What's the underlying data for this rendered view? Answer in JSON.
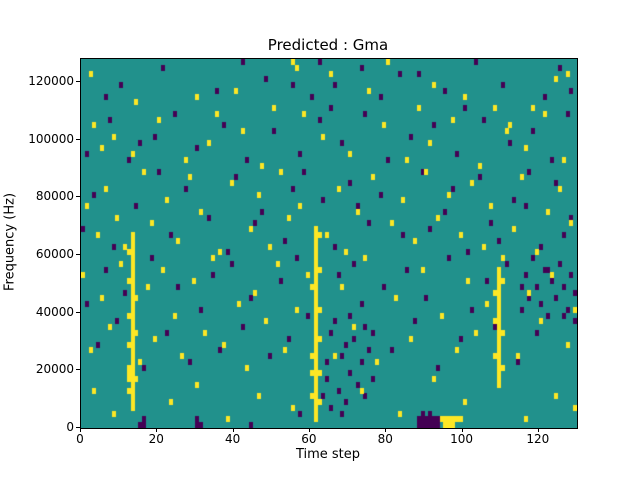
{
  "chart_data": {
    "type": "heatmap",
    "title": "Predicted : Gma",
    "xlabel": "Time step",
    "ylabel": "Frequency (Hz)",
    "xlim": [
      0,
      130
    ],
    "ylim": [
      0,
      128000
    ],
    "x_ticks": [
      0,
      20,
      40,
      60,
      80,
      100,
      120
    ],
    "y_ticks": [
      0,
      20000,
      40000,
      60000,
      80000,
      100000,
      120000
    ],
    "grid": false,
    "legend": "none",
    "n_time_steps": 130,
    "n_freq_bins": 64,
    "freq_bin_hz": 2000,
    "colors": {
      "background_mid": "#21918c",
      "high": "#fde725",
      "low": "#440154"
    },
    "yellow_cells": [
      [
        2,
        61
      ],
      [
        55,
        63
      ],
      [
        56,
        62
      ],
      [
        75,
        58
      ],
      [
        80,
        63
      ],
      [
        92,
        59
      ],
      [
        124,
        60
      ],
      [
        30,
        57
      ],
      [
        14,
        56
      ],
      [
        40,
        58
      ],
      [
        65,
        61
      ],
      [
        100,
        57
      ],
      [
        118,
        55
      ],
      [
        127,
        61
      ],
      [
        3,
        52
      ],
      [
        5,
        48
      ],
      [
        8,
        50
      ],
      [
        13,
        47
      ],
      [
        20,
        53
      ],
      [
        27,
        46
      ],
      [
        33,
        49
      ],
      [
        42,
        51
      ],
      [
        47,
        45
      ],
      [
        58,
        54
      ],
      [
        63,
        50
      ],
      [
        70,
        47
      ],
      [
        79,
        52
      ],
      [
        85,
        46
      ],
      [
        91,
        49
      ],
      [
        97,
        53
      ],
      [
        104,
        45
      ],
      [
        111,
        51
      ],
      [
        116,
        48
      ],
      [
        121,
        54
      ],
      [
        126,
        46
      ],
      [
        35,
        54
      ],
      [
        50,
        55
      ],
      [
        88,
        55
      ],
      [
        108,
        55
      ],
      [
        112,
        52
      ],
      [
        1,
        38
      ],
      [
        4,
        33
      ],
      [
        6,
        41
      ],
      [
        9,
        36
      ],
      [
        11,
        31
      ],
      [
        16,
        44
      ],
      [
        18,
        35
      ],
      [
        22,
        39
      ],
      [
        25,
        32
      ],
      [
        28,
        43
      ],
      [
        31,
        37
      ],
      [
        36,
        30
      ],
      [
        39,
        42
      ],
      [
        44,
        34
      ],
      [
        46,
        40
      ],
      [
        49,
        31
      ],
      [
        52,
        44
      ],
      [
        54,
        36
      ],
      [
        57,
        38
      ],
      [
        64,
        33
      ],
      [
        67,
        41
      ],
      [
        69,
        30
      ],
      [
        72,
        37
      ],
      [
        76,
        43
      ],
      [
        81,
        35
      ],
      [
        84,
        39
      ],
      [
        87,
        32
      ],
      [
        90,
        44
      ],
      [
        93,
        36
      ],
      [
        96,
        40
      ],
      [
        99,
        33
      ],
      [
        102,
        42
      ],
      [
        105,
        31
      ],
      [
        107,
        38
      ],
      [
        113,
        34
      ],
      [
        115,
        43
      ],
      [
        119,
        30
      ],
      [
        122,
        37
      ],
      [
        125,
        41
      ],
      [
        128,
        35
      ],
      [
        0,
        26
      ],
      [
        2,
        13
      ],
      [
        5,
        22
      ],
      [
        7,
        17
      ],
      [
        10,
        28
      ],
      [
        15,
        11
      ],
      [
        17,
        24
      ],
      [
        19,
        15
      ],
      [
        21,
        27
      ],
      [
        24,
        19
      ],
      [
        26,
        12
      ],
      [
        29,
        25
      ],
      [
        32,
        16
      ],
      [
        34,
        29
      ],
      [
        37,
        14
      ],
      [
        41,
        21
      ],
      [
        43,
        10
      ],
      [
        45,
        23
      ],
      [
        48,
        18
      ],
      [
        51,
        28
      ],
      [
        53,
        13
      ],
      [
        56,
        20
      ],
      [
        59,
        26
      ],
      [
        66,
        12
      ],
      [
        68,
        24
      ],
      [
        71,
        17
      ],
      [
        74,
        29
      ],
      [
        77,
        11
      ],
      [
        82,
        22
      ],
      [
        86,
        15
      ],
      [
        89,
        27
      ],
      [
        94,
        19
      ],
      [
        98,
        13
      ],
      [
        101,
        25
      ],
      [
        103,
        16
      ],
      [
        106,
        21
      ],
      [
        110,
        29
      ],
      [
        114,
        12
      ],
      [
        117,
        23
      ],
      [
        120,
        18
      ],
      [
        123,
        26
      ],
      [
        127,
        14
      ],
      [
        129,
        20
      ],
      [
        3,
        6
      ],
      [
        8,
        2
      ],
      [
        12,
        8
      ],
      [
        23,
        4
      ],
      [
        30,
        7
      ],
      [
        38,
        1
      ],
      [
        46,
        5
      ],
      [
        55,
        3
      ],
      [
        60,
        9
      ],
      [
        73,
        6
      ],
      [
        83,
        2
      ],
      [
        92,
        8
      ],
      [
        100,
        4
      ],
      [
        109,
        7
      ],
      [
        116,
        1
      ],
      [
        124,
        5
      ],
      [
        129,
        3
      ],
      [
        13,
        3
      ],
      [
        13,
        4
      ],
      [
        13,
        5
      ],
      [
        13,
        6
      ],
      [
        13,
        7
      ],
      [
        13,
        8
      ],
      [
        13,
        9
      ],
      [
        13,
        10
      ],
      [
        13,
        11
      ],
      [
        13,
        12
      ],
      [
        13,
        13
      ],
      [
        13,
        14
      ],
      [
        13,
        15
      ],
      [
        13,
        16
      ],
      [
        13,
        17
      ],
      [
        13,
        18
      ],
      [
        13,
        19
      ],
      [
        13,
        20
      ],
      [
        13,
        21
      ],
      [
        13,
        22
      ],
      [
        13,
        23
      ],
      [
        13,
        24
      ],
      [
        13,
        25
      ],
      [
        13,
        26
      ],
      [
        13,
        27
      ],
      [
        13,
        28
      ],
      [
        13,
        29
      ],
      [
        13,
        30
      ],
      [
        13,
        31
      ],
      [
        13,
        32
      ],
      [
        13,
        33
      ],
      [
        12,
        6
      ],
      [
        12,
        9
      ],
      [
        12,
        10
      ],
      [
        12,
        14
      ],
      [
        12,
        19
      ],
      [
        12,
        25
      ],
      [
        12,
        30
      ],
      [
        14,
        8
      ],
      [
        14,
        16
      ],
      [
        14,
        22
      ],
      [
        61,
        1
      ],
      [
        61,
        2
      ],
      [
        61,
        3
      ],
      [
        61,
        4
      ],
      [
        61,
        5
      ],
      [
        61,
        6
      ],
      [
        61,
        7
      ],
      [
        61,
        8
      ],
      [
        61,
        9
      ],
      [
        61,
        10
      ],
      [
        61,
        11
      ],
      [
        61,
        12
      ],
      [
        61,
        13
      ],
      [
        61,
        14
      ],
      [
        61,
        15
      ],
      [
        61,
        16
      ],
      [
        61,
        17
      ],
      [
        61,
        18
      ],
      [
        61,
        19
      ],
      [
        61,
        20
      ],
      [
        61,
        21
      ],
      [
        61,
        22
      ],
      [
        61,
        23
      ],
      [
        61,
        24
      ],
      [
        61,
        25
      ],
      [
        61,
        26
      ],
      [
        61,
        27
      ],
      [
        61,
        28
      ],
      [
        61,
        29
      ],
      [
        61,
        30
      ],
      [
        61,
        31
      ],
      [
        61,
        32
      ],
      [
        61,
        33
      ],
      [
        61,
        34
      ],
      [
        62,
        4
      ],
      [
        62,
        9
      ],
      [
        62,
        15
      ],
      [
        62,
        20
      ],
      [
        62,
        27
      ],
      [
        62,
        33
      ],
      [
        60,
        5
      ],
      [
        60,
        12
      ],
      [
        60,
        24
      ],
      [
        109,
        8
      ],
      [
        109,
        9
      ],
      [
        109,
        10
      ],
      [
        109,
        11
      ],
      [
        109,
        12
      ],
      [
        109,
        13
      ],
      [
        109,
        14
      ],
      [
        109,
        15
      ],
      [
        109,
        16
      ],
      [
        109,
        17
      ],
      [
        109,
        18
      ],
      [
        109,
        19
      ],
      [
        109,
        20
      ],
      [
        109,
        21
      ],
      [
        109,
        22
      ],
      [
        109,
        23
      ],
      [
        109,
        24
      ],
      [
        109,
        25
      ],
      [
        109,
        26
      ],
      [
        109,
        27
      ],
      [
        108,
        12
      ],
      [
        108,
        18
      ],
      [
        108,
        23
      ],
      [
        110,
        10
      ],
      [
        110,
        16
      ],
      [
        110,
        25
      ],
      [
        94,
        1
      ],
      [
        95,
        1
      ],
      [
        96,
        1
      ],
      [
        97,
        1
      ],
      [
        98,
        1
      ],
      [
        99,
        1
      ],
      [
        95,
        0
      ],
      [
        96,
        0
      ],
      [
        97,
        0
      ]
    ],
    "purple_cells": [
      [
        10,
        59
      ],
      [
        21,
        62
      ],
      [
        35,
        58
      ],
      [
        48,
        60
      ],
      [
        60,
        57
      ],
      [
        62,
        63
      ],
      [
        66,
        59
      ],
      [
        73,
        62
      ],
      [
        78,
        57
      ],
      [
        83,
        61
      ],
      [
        95,
        58
      ],
      [
        103,
        63
      ],
      [
        110,
        59
      ],
      [
        121,
        57
      ],
      [
        125,
        62
      ],
      [
        128,
        58
      ],
      [
        6,
        57
      ],
      [
        42,
        63
      ],
      [
        55,
        59
      ],
      [
        88,
        61
      ],
      [
        1,
        47
      ],
      [
        7,
        53
      ],
      [
        12,
        46
      ],
      [
        19,
        50
      ],
      [
        24,
        54
      ],
      [
        30,
        48
      ],
      [
        37,
        52
      ],
      [
        43,
        46
      ],
      [
        50,
        51
      ],
      [
        57,
        47
      ],
      [
        62,
        53
      ],
      [
        68,
        49
      ],
      [
        74,
        54
      ],
      [
        80,
        46
      ],
      [
        86,
        50
      ],
      [
        92,
        52
      ],
      [
        98,
        47
      ],
      [
        105,
        53
      ],
      [
        112,
        49
      ],
      [
        118,
        51
      ],
      [
        123,
        46
      ],
      [
        127,
        54
      ],
      [
        15,
        49
      ],
      [
        65,
        55
      ],
      [
        100,
        55
      ],
      [
        0,
        34
      ],
      [
        3,
        40
      ],
      [
        8,
        31
      ],
      [
        14,
        38
      ],
      [
        20,
        44
      ],
      [
        23,
        33
      ],
      [
        27,
        41
      ],
      [
        33,
        36
      ],
      [
        38,
        30
      ],
      [
        40,
        43
      ],
      [
        47,
        37
      ],
      [
        53,
        32
      ],
      [
        58,
        44
      ],
      [
        63,
        39
      ],
      [
        66,
        31
      ],
      [
        70,
        42
      ],
      [
        75,
        35
      ],
      [
        78,
        40
      ],
      [
        84,
        33
      ],
      [
        89,
        44
      ],
      [
        95,
        37
      ],
      [
        101,
        30
      ],
      [
        104,
        43
      ],
      [
        109,
        32
      ],
      [
        113,
        39
      ],
      [
        117,
        44
      ],
      [
        120,
        31
      ],
      [
        124,
        42
      ],
      [
        128,
        36
      ],
      [
        45,
        35
      ],
      [
        55,
        41
      ],
      [
        72,
        38
      ],
      [
        91,
        34
      ],
      [
        97,
        41
      ],
      [
        107,
        35
      ],
      [
        116,
        38
      ],
      [
        126,
        33
      ],
      [
        1,
        21
      ],
      [
        4,
        14
      ],
      [
        6,
        27
      ],
      [
        9,
        18
      ],
      [
        11,
        23
      ],
      [
        16,
        10
      ],
      [
        18,
        29
      ],
      [
        22,
        16
      ],
      [
        25,
        24
      ],
      [
        28,
        11
      ],
      [
        31,
        20
      ],
      [
        34,
        26
      ],
      [
        36,
        13
      ],
      [
        39,
        28
      ],
      [
        42,
        17
      ],
      [
        44,
        22
      ],
      [
        49,
        12
      ],
      [
        52,
        25
      ],
      [
        54,
        15
      ],
      [
        56,
        29
      ],
      [
        59,
        19
      ],
      [
        64,
        11
      ],
      [
        67,
        26
      ],
      [
        69,
        14
      ],
      [
        71,
        28
      ],
      [
        73,
        21
      ],
      [
        76,
        16
      ],
      [
        79,
        24
      ],
      [
        81,
        13
      ],
      [
        85,
        27
      ],
      [
        87,
        18
      ],
      [
        90,
        22
      ],
      [
        93,
        10
      ],
      [
        96,
        29
      ],
      [
        99,
        15
      ],
      [
        102,
        20
      ],
      [
        106,
        25
      ],
      [
        108,
        17
      ],
      [
        111,
        28
      ],
      [
        114,
        11
      ],
      [
        115,
        24
      ],
      [
        119,
        16
      ],
      [
        122,
        27
      ],
      [
        126,
        19
      ],
      [
        129,
        23
      ],
      [
        63,
        5
      ],
      [
        64,
        8
      ],
      [
        65,
        3
      ],
      [
        66,
        18
      ],
      [
        67,
        6
      ],
      [
        68,
        12
      ],
      [
        69,
        4
      ],
      [
        70,
        9
      ],
      [
        71,
        15
      ],
      [
        72,
        7
      ],
      [
        73,
        11
      ],
      [
        74,
        5
      ],
      [
        75,
        13
      ],
      [
        76,
        8
      ],
      [
        65,
        16
      ],
      [
        68,
        2
      ],
      [
        70,
        19
      ],
      [
        74,
        17
      ],
      [
        88,
        0
      ],
      [
        88,
        1
      ],
      [
        89,
        0
      ],
      [
        89,
        1
      ],
      [
        89,
        2
      ],
      [
        90,
        0
      ],
      [
        90,
        1
      ],
      [
        91,
        0
      ],
      [
        91,
        1
      ],
      [
        91,
        2
      ],
      [
        92,
        0
      ],
      [
        92,
        1
      ],
      [
        93,
        0
      ],
      [
        93,
        1
      ],
      [
        15,
        0
      ],
      [
        16,
        0
      ],
      [
        16,
        1
      ],
      [
        30,
        0
      ],
      [
        31,
        0
      ],
      [
        30,
        1
      ],
      [
        44,
        0
      ],
      [
        57,
        2
      ],
      [
        115,
        20
      ],
      [
        116,
        26
      ],
      [
        117,
        22
      ],
      [
        118,
        29
      ],
      [
        119,
        24
      ],
      [
        120,
        21
      ],
      [
        121,
        27
      ],
      [
        122,
        19
      ],
      [
        123,
        25
      ],
      [
        124,
        22
      ],
      [
        125,
        28
      ],
      [
        126,
        24
      ],
      [
        127,
        20
      ],
      [
        128,
        26
      ],
      [
        129,
        18
      ]
    ]
  }
}
